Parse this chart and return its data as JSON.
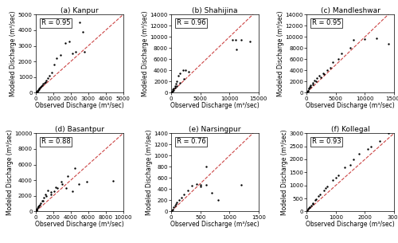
{
  "subplots": [
    {
      "title": "(a) Kanpur",
      "R": "R = 0.95",
      "xlim": [
        0,
        5000
      ],
      "ylim": [
        0,
        5000
      ],
      "xticks": [
        0,
        1000,
        2000,
        3000,
        4000,
        5000
      ],
      "yticks": [
        0,
        1000,
        2000,
        3000,
        4000,
        5000
      ],
      "observed": [
        30,
        50,
        70,
        90,
        110,
        130,
        150,
        170,
        200,
        240,
        280,
        330,
        380,
        430,
        480,
        530,
        600,
        680,
        780,
        900,
        1050,
        1200,
        1400,
        1700,
        1900,
        2100,
        2300,
        2500,
        2700,
        2800
      ],
      "modeled": [
        40,
        60,
        80,
        100,
        130,
        160,
        190,
        220,
        270,
        320,
        380,
        440,
        500,
        560,
        620,
        700,
        800,
        950,
        1100,
        1300,
        1800,
        2200,
        2400,
        3200,
        3300,
        2500,
        2600,
        4500,
        3900,
        2600
      ]
    },
    {
      "title": "(b) Shahijina",
      "R": "R = 0.96",
      "xlim": [
        0,
        15000
      ],
      "ylim": [
        0,
        14000
      ],
      "xticks": [
        0,
        5000,
        10000,
        15000
      ],
      "yticks": [
        0,
        2000,
        4000,
        6000,
        8000,
        10000,
        12000,
        14000
      ],
      "observed": [
        50,
        100,
        200,
        300,
        400,
        600,
        800,
        1000,
        1200,
        1500,
        2000,
        2500,
        3000,
        200,
        400,
        700,
        1000,
        1500,
        2200,
        10500,
        11000,
        12000,
        13500,
        11200
      ],
      "modeled": [
        100,
        200,
        400,
        600,
        800,
        1200,
        1600,
        2000,
        3000,
        3500,
        4000,
        4000,
        3800,
        300,
        500,
        900,
        1200,
        1800,
        2500,
        9500,
        9500,
        9500,
        9200,
        7800
      ]
    },
    {
      "title": "(c) Mandleshwar",
      "R": "R = 0.95",
      "xlim": [
        0,
        15000
      ],
      "ylim": [
        0,
        14000
      ],
      "xticks": [
        0,
        5000,
        10000,
        15000
      ],
      "yticks": [
        0,
        2000,
        4000,
        6000,
        8000,
        10000,
        12000,
        14000
      ],
      "observed": [
        100,
        200,
        350,
        500,
        700,
        1000,
        1300,
        1700,
        2200,
        2800,
        3500,
        4500,
        6000,
        8000,
        10000,
        14000,
        200,
        400,
        700,
        1100,
        1600,
        2400,
        3000,
        4000,
        5500,
        7500,
        12000
      ],
      "modeled": [
        200,
        400,
        700,
        1000,
        1400,
        1800,
        2200,
        2600,
        3000,
        3500,
        4000,
        5500,
        7000,
        9500,
        9600,
        8700,
        400,
        700,
        1000,
        1500,
        2000,
        2700,
        3300,
        4500,
        6000,
        8000,
        9700
      ]
    },
    {
      "title": "(d) Basantpur",
      "R": "R = 0.88",
      "xlim": [
        0,
        10000
      ],
      "ylim": [
        0,
        10000
      ],
      "xticks": [
        0,
        2000,
        4000,
        6000,
        8000,
        10000
      ],
      "yticks": [
        0,
        2000,
        4000,
        6000,
        8000,
        10000
      ],
      "observed": [
        50,
        100,
        200,
        300,
        400,
        550,
        700,
        900,
        1100,
        1400,
        1700,
        2100,
        2500,
        3000,
        3500,
        4200,
        4900,
        5800,
        8800,
        100,
        250,
        500,
        800,
        1200,
        1700,
        2300,
        2900,
        3600,
        4500
      ],
      "modeled": [
        100,
        200,
        400,
        600,
        800,
        1100,
        1400,
        1800,
        2200,
        2700,
        2200,
        2600,
        3000,
        3500,
        3000,
        2600,
        3500,
        3800,
        3900,
        200,
        500,
        900,
        1400,
        2000,
        2500,
        3100,
        3800,
        4500,
        5500
      ]
    },
    {
      "title": "(e) Narsingpur",
      "R": "R = 0.76",
      "xlim": [
        0,
        1500
      ],
      "ylim": [
        0,
        1400
      ],
      "xticks": [
        0,
        500,
        1000,
        1500
      ],
      "yticks": [
        0,
        200,
        400,
        600,
        800,
        1000,
        1200,
        1400
      ],
      "observed": [
        10,
        20,
        40,
        60,
        80,
        100,
        130,
        170,
        220,
        280,
        350,
        430,
        510,
        600,
        700,
        800,
        500,
        600,
        1200
      ],
      "modeled": [
        20,
        40,
        70,
        100,
        130,
        160,
        200,
        250,
        310,
        380,
        460,
        490,
        480,
        800,
        340,
        200,
        450,
        470,
        480
      ]
    },
    {
      "title": "(f) Kollegal",
      "R": "R = 0.93",
      "xlim": [
        0,
        3000
      ],
      "ylim": [
        0,
        3000
      ],
      "xticks": [
        0,
        1000,
        2000,
        3000
      ],
      "yticks": [
        0,
        500,
        1000,
        1500,
        2000,
        2500,
        3000
      ],
      "observed": [
        30,
        60,
        100,
        150,
        220,
        320,
        450,
        650,
        900,
        1300,
        1800,
        2500,
        80,
        200,
        400,
        700,
        1100,
        1600,
        2200,
        100,
        300,
        600,
        1000,
        1500,
        2100,
        2800
      ],
      "modeled": [
        50,
        100,
        160,
        230,
        330,
        480,
        650,
        900,
        1200,
        1700,
        2200,
        2700,
        120,
        300,
        600,
        950,
        1400,
        2000,
        2500,
        150,
        450,
        800,
        1300,
        1800,
        2400,
        3000
      ]
    }
  ],
  "scatter_color": "black",
  "scatter_size": 3,
  "line_color": "#cc4444",
  "line_style": "--",
  "ylabel": "Modeled Discharge (m³/sec)",
  "xlabel": "Observed Discharge (m³/sec)",
  "title_fontsize": 6.5,
  "label_fontsize": 5.5,
  "tick_fontsize": 5,
  "R_fontsize": 6,
  "fig_width": 5.0,
  "fig_height": 3.05,
  "dpi": 100
}
